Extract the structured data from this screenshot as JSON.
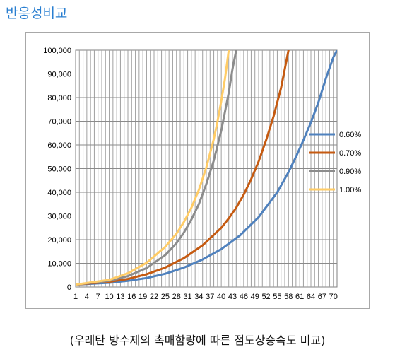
{
  "page": {
    "title": "반응성비교",
    "caption": "(우레탄 방수제의 촉매함량에 따른 점도상승속도 비교)"
  },
  "chart_data": {
    "type": "line",
    "title": "",
    "xlabel": "",
    "ylabel": "",
    "x_range": [
      1,
      71
    ],
    "x_tick_labels": [
      "1",
      "4",
      "7",
      "10",
      "13",
      "16",
      "19",
      "22",
      "25",
      "28",
      "31",
      "34",
      "37",
      "40",
      "43",
      "46",
      "49",
      "52",
      "55",
      "58",
      "61",
      "64",
      "67",
      "70"
    ],
    "ylim": [
      0,
      100000
    ],
    "y_tick_labels": [
      "0",
      "10,000",
      "20,000",
      "30,000",
      "40,000",
      "50,000",
      "60,000",
      "70,000",
      "80,000",
      "90,000",
      "100,000"
    ],
    "grid": "vertical and horizontal gridlines",
    "legend": "right",
    "series": [
      {
        "name": "0.60%",
        "color": "#4f81bd",
        "points": [
          [
            1,
            1000
          ],
          [
            10,
            1800
          ],
          [
            15,
            2600
          ],
          [
            20,
            3800
          ],
          [
            25,
            5600
          ],
          [
            30,
            8200
          ],
          [
            35,
            11600
          ],
          [
            40,
            16000
          ],
          [
            45,
            21800
          ],
          [
            50,
            29500
          ],
          [
            55,
            40000
          ],
          [
            58,
            48500
          ],
          [
            60,
            55000
          ],
          [
            62,
            62000
          ],
          [
            64,
            69500
          ],
          [
            66,
            78000
          ],
          [
            68,
            88000
          ],
          [
            70,
            97000
          ],
          [
            71,
            100000
          ]
        ]
      },
      {
        "name": "0.70%",
        "color": "#c55a11",
        "points": [
          [
            1,
            1000
          ],
          [
            10,
            2200
          ],
          [
            15,
            3400
          ],
          [
            20,
            5400
          ],
          [
            25,
            8200
          ],
          [
            30,
            12200
          ],
          [
            35,
            17600
          ],
          [
            40,
            25000
          ],
          [
            42,
            29000
          ],
          [
            44,
            33500
          ],
          [
            46,
            39000
          ],
          [
            48,
            45500
          ],
          [
            50,
            53000
          ],
          [
            52,
            62000
          ],
          [
            54,
            72000
          ],
          [
            56,
            84000
          ],
          [
            57,
            92000
          ],
          [
            58,
            100000
          ]
        ]
      },
      {
        "name": "0.90%",
        "color": "#8c8c8c",
        "points": [
          [
            1,
            1000
          ],
          [
            10,
            2600
          ],
          [
            15,
            4600
          ],
          [
            20,
            8000
          ],
          [
            25,
            13500
          ],
          [
            28,
            18500
          ],
          [
            30,
            23000
          ],
          [
            32,
            28500
          ],
          [
            34,
            35000
          ],
          [
            36,
            43500
          ],
          [
            38,
            53500
          ],
          [
            40,
            66000
          ],
          [
            42,
            82000
          ],
          [
            43,
            92000
          ],
          [
            44,
            100000
          ]
        ]
      },
      {
        "name": "1.00%",
        "color": "#ffcc66",
        "points": [
          [
            1,
            1000
          ],
          [
            10,
            3000
          ],
          [
            15,
            5800
          ],
          [
            20,
            10200
          ],
          [
            25,
            17000
          ],
          [
            28,
            22500
          ],
          [
            30,
            27500
          ],
          [
            32,
            33500
          ],
          [
            34,
            41000
          ],
          [
            36,
            50500
          ],
          [
            38,
            62500
          ],
          [
            39,
            70000
          ],
          [
            40,
            78500
          ],
          [
            41,
            88000
          ],
          [
            42,
            100000
          ]
        ]
      }
    ]
  }
}
